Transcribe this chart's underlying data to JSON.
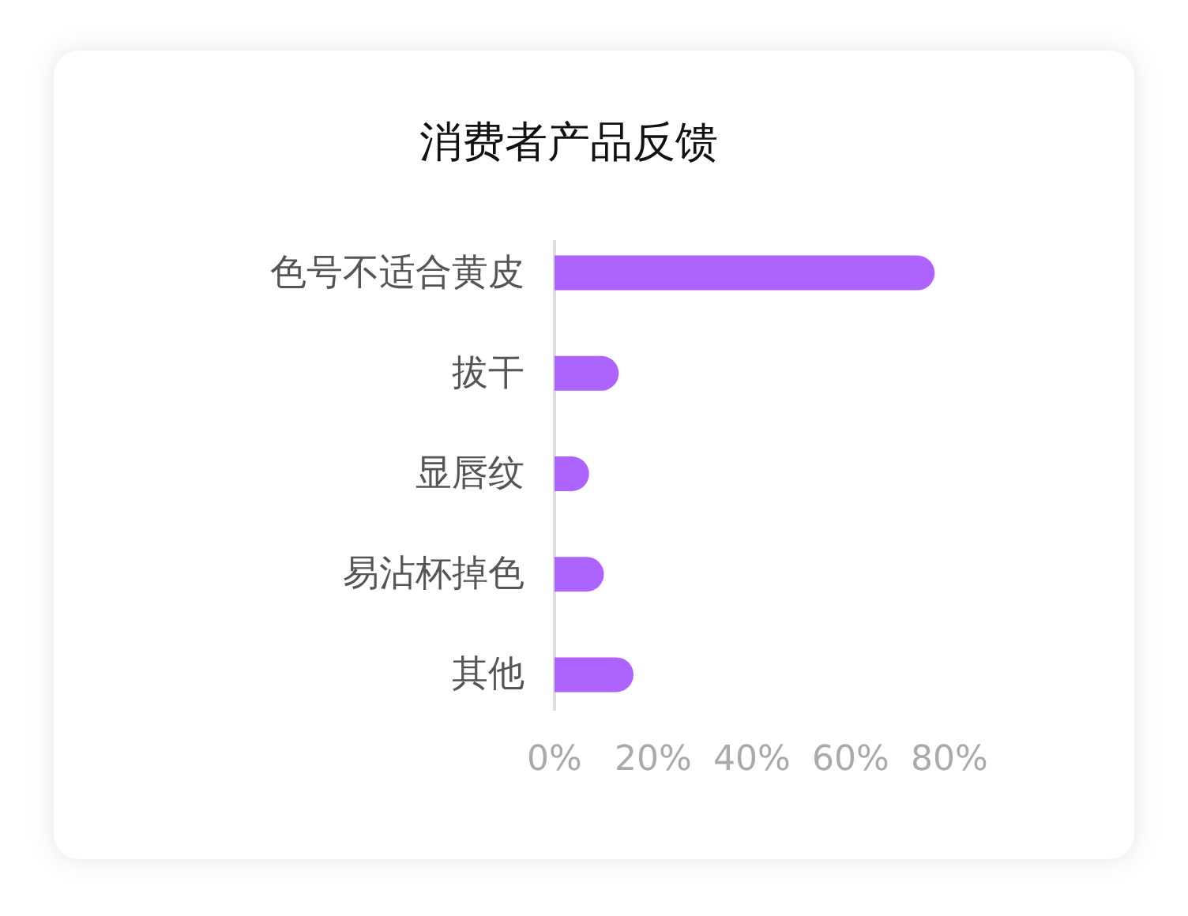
{
  "chart_data": {
    "type": "bar",
    "orientation": "horizontal",
    "title": "消费者产品反馈",
    "categories": [
      "色号不适合黄皮",
      "拔干",
      "显唇纹",
      "易沾杯掉色",
      "其他"
    ],
    "values": [
      77,
      13,
      7,
      10,
      16
    ],
    "color": "#ad64ff",
    "xlim": [
      0,
      80
    ],
    "xticks": [
      {
        "value": 0,
        "label": "0%"
      },
      {
        "value": 20,
        "label": "20%"
      },
      {
        "value": 40,
        "label": "40%"
      },
      {
        "value": 60,
        "label": "60%"
      },
      {
        "value": 80,
        "label": "80%"
      }
    ]
  }
}
